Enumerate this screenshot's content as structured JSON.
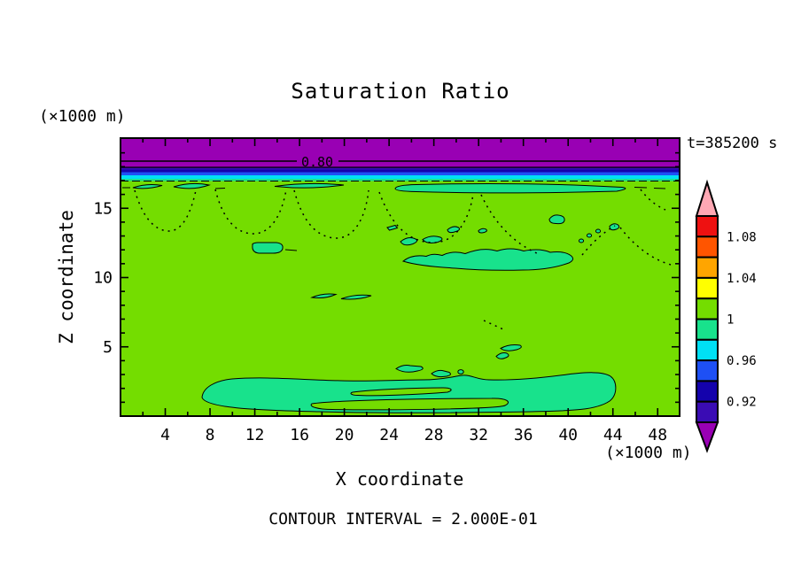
{
  "title": "Saturation Ratio",
  "annotations": {
    "time": "t=385200 s",
    "y_units": "(×1000 m)",
    "x_units": "(×1000 m)",
    "contour_interval_text": "CONTOUR INTERVAL = 2.000E-01",
    "contour_line_label": "0.80"
  },
  "axes": {
    "x": {
      "label": "X coordinate",
      "tick_labels": [
        "4",
        "8",
        "12",
        "16",
        "20",
        "24",
        "28",
        "32",
        "36",
        "40",
        "44",
        "48"
      ]
    },
    "y": {
      "label": "Z coordinate",
      "tick_labels": [
        "5",
        "10",
        "15"
      ]
    }
  },
  "palette": {
    "purple": "#9900B4",
    "indigo": "#3A0CB4",
    "navy": "#1402AC",
    "blue": "#1E50F5",
    "cyan": "#00E0F5",
    "springgreen": "#18E28C",
    "chartreuse": "#74DD00",
    "yellow": "#FFFF00",
    "orange": "#FFA500",
    "orangered": "#FF5500",
    "red": "#EE1111",
    "pink": "#FFA8B4",
    "line": "#000000"
  },
  "colorbar": {
    "top_arrow_color": "#FFA8B4",
    "bottom_arrow_color": "#9900B4",
    "segments": [
      {
        "color": "#EE1111",
        "label": "1.08"
      },
      {
        "color": "#FF5500",
        "label": null
      },
      {
        "color": "#FFA500",
        "label": "1.04"
      },
      {
        "color": "#FFFF00",
        "label": null
      },
      {
        "color": "#74DD00",
        "label": "1"
      },
      {
        "color": "#18E28C",
        "label": null
      },
      {
        "color": "#00E0F5",
        "label": "0.96"
      },
      {
        "color": "#1E50F5",
        "label": null
      },
      {
        "color": "#1402AC",
        "label": "0.92"
      },
      {
        "color": "#3A0CB4",
        "label": null
      }
    ]
  },
  "chart_data": {
    "type": "heatmap",
    "title": "Saturation Ratio",
    "xlabel": "X coordinate (×1000 m)",
    "ylabel": "Z coordinate (×1000 m)",
    "xlim": [
      0,
      50
    ],
    "ylim": [
      0,
      20
    ],
    "time_annotation": "t=385200 s",
    "contour_interval": 0.2,
    "labeled_contour": {
      "value": 0.8,
      "z_km": 18.4,
      "region": "inside upper purple band"
    },
    "colorbar_boundary_values": [
      0.9,
      0.92,
      0.94,
      0.96,
      0.98,
      1.0,
      1.02,
      1.04,
      1.06,
      1.08,
      1.1
    ],
    "colorbar_labeled_values": [
      1.08,
      1.04,
      1.0,
      0.96,
      0.92
    ],
    "legend_position": "right vertical colorbar with pointed over/underflow arrows",
    "grid": false,
    "x_tick_step": 4,
    "x_minor_tick_step": 2,
    "y_tick_step": 5,
    "y_minor_tick_step": 1,
    "horizontal_bands": [
      {
        "z_range_km": [
          17.9,
          20.0
        ],
        "saturation": "< 0.90",
        "color": "purple"
      },
      {
        "z_range_km": [
          17.75,
          17.9
        ],
        "saturation": "0.90-0.92",
        "color": "indigo"
      },
      {
        "z_range_km": [
          17.6,
          17.75
        ],
        "saturation": "0.92-0.94",
        "color": "navy"
      },
      {
        "z_range_km": [
          17.35,
          17.6
        ],
        "saturation": "0.94-0.96",
        "color": "blue"
      },
      {
        "z_range_km": [
          17.1,
          17.35
        ],
        "saturation": "0.96-0.98",
        "color": "cyan"
      },
      {
        "z_range_km": [
          16.95,
          17.1
        ],
        "saturation": "0.98-1.00",
        "color": "springgreen"
      },
      {
        "z_range_km": [
          0.0,
          16.95
        ],
        "saturation": "1.00-1.02",
        "color": "chartreuse"
      }
    ],
    "features": [
      "thin spring-green (0.98-1.00) lens patches just below the band stack near z=16.6 km across most of the domain",
      "dotted scalloped saturation=1 contour festoons hanging from z=16.4 km down to z=12-13 km",
      "cluster of small spring-green lenses near x=28-44, z=10-13.5 km",
      "elongated spring-green layer near x=25-41, z=10.2-11.9 km",
      "pair of small lenses near x=17-23, z=8.4 km",
      "small patch near x=34, z=5 km",
      "large spring-green pool x=7.3-44.3, z=0.3-3.0 km hugging the ground with two chartreuse (>1.00) internal layers"
    ]
  }
}
